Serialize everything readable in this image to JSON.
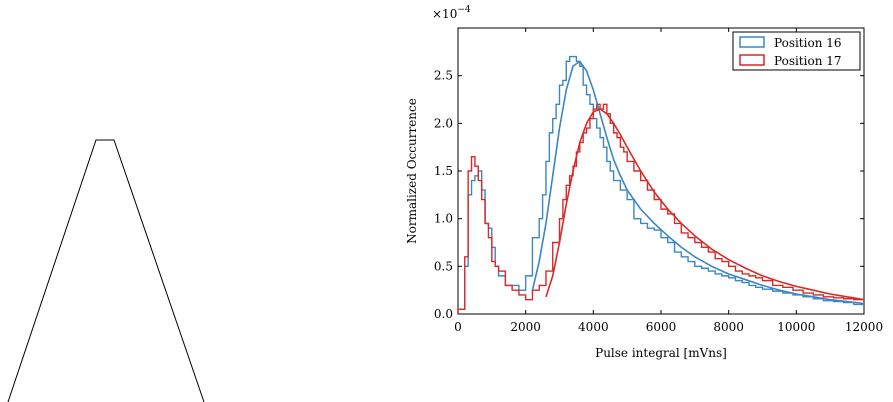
{
  "chart_data": {
    "type": "line",
    "title": "",
    "xlabel": "Pulse integral [mVns]",
    "ylabel": "Normalized Occurrence",
    "y_multiplier": "×10",
    "y_multiplier_exponent": "−4",
    "xlim": [
      0,
      12000
    ],
    "ylim": [
      0,
      3.0
    ],
    "x_ticks": [
      0,
      2000,
      4000,
      6000,
      8000,
      10000,
      12000
    ],
    "x_tick_labels": [
      "0",
      "2000",
      "4000",
      "6000",
      "8000",
      "10000",
      "12000"
    ],
    "y_ticks": [
      0,
      0.5,
      1.0,
      1.5,
      2.0,
      2.5
    ],
    "y_tick_labels": [
      "0.0",
      "0.5",
      "1.0",
      "1.5",
      "2.0",
      "2.5"
    ],
    "y_unit_scale": 0.0001,
    "grid": false,
    "legend_position": "top-right",
    "series": [
      {
        "name": "Position 16",
        "color": "#3b87c3",
        "histogram": {
          "edges": [
            0,
            200,
            300,
            400,
            500,
            600,
            700,
            800,
            900,
            1000,
            1100,
            1200,
            1400,
            1600,
            1800,
            2000,
            2200,
            2400,
            2500,
            2600,
            2700,
            2800,
            2900,
            3000,
            3100,
            3200,
            3300,
            3400,
            3500,
            3600,
            3700,
            3800,
            3900,
            4000,
            4100,
            4200,
            4300,
            4400,
            4500,
            4600,
            4800,
            5000,
            5200,
            5400,
            5600,
            5800,
            6000,
            6200,
            6400,
            6600,
            6800,
            7000,
            7200,
            7400,
            7600,
            7800,
            8000,
            8200,
            8400,
            8600,
            8800,
            9000,
            9300,
            9600,
            9900,
            10200,
            10500,
            10800,
            11100,
            11400,
            11700,
            12000
          ],
          "values": [
            0.05,
            0.5,
            1.25,
            1.4,
            1.45,
            1.5,
            1.3,
            0.95,
            0.9,
            0.7,
            0.5,
            0.4,
            0.3,
            0.3,
            0.25,
            0.4,
            0.8,
            1.0,
            1.25,
            1.6,
            1.9,
            2.05,
            2.2,
            2.4,
            2.45,
            2.65,
            2.7,
            2.7,
            2.65,
            2.6,
            2.4,
            2.3,
            2.2,
            2.05,
            1.95,
            1.85,
            1.75,
            1.6,
            1.5,
            1.4,
            1.3,
            1.2,
            1.0,
            0.95,
            0.9,
            0.88,
            0.8,
            0.75,
            0.65,
            0.6,
            0.55,
            0.5,
            0.48,
            0.45,
            0.42,
            0.4,
            0.38,
            0.35,
            0.33,
            0.3,
            0.28,
            0.26,
            0.24,
            0.22,
            0.2,
            0.18,
            0.16,
            0.14,
            0.13,
            0.12,
            0.1
          ]
        },
        "fit": {
          "x": [
            2200,
            2400,
            2600,
            2800,
            3000,
            3200,
            3400,
            3600,
            3800,
            4000,
            4200,
            4400,
            4600,
            4800,
            5000,
            5400,
            5800,
            6200,
            6600,
            7000,
            7500,
            8000,
            8500,
            9000,
            9500,
            10000,
            10500,
            11000,
            11500,
            12000
          ],
          "y": [
            0.25,
            0.55,
            0.95,
            1.45,
            1.95,
            2.35,
            2.6,
            2.65,
            2.55,
            2.35,
            2.1,
            1.85,
            1.62,
            1.45,
            1.3,
            1.1,
            0.95,
            0.82,
            0.7,
            0.6,
            0.5,
            0.42,
            0.36,
            0.3,
            0.25,
            0.21,
            0.18,
            0.15,
            0.13,
            0.11
          ]
        }
      },
      {
        "name": "Position 17",
        "color": "#d92929",
        "histogram": {
          "edges": [
            0,
            200,
            300,
            400,
            500,
            600,
            700,
            800,
            900,
            1000,
            1100,
            1200,
            1400,
            1600,
            1800,
            2000,
            2200,
            2400,
            2600,
            2800,
            3000,
            3100,
            3200,
            3300,
            3400,
            3500,
            3600,
            3700,
            3800,
            3900,
            4000,
            4100,
            4200,
            4300,
            4400,
            4500,
            4600,
            4700,
            4800,
            4900,
            5000,
            5200,
            5400,
            5600,
            5800,
            6000,
            6200,
            6400,
            6600,
            6800,
            7000,
            7200,
            7400,
            7600,
            7800,
            8000,
            8200,
            8400,
            8600,
            8800,
            9000,
            9300,
            9600,
            9900,
            10200,
            10500,
            10800,
            11100,
            11400,
            11700,
            12000
          ],
          "values": [
            0.05,
            0.6,
            1.5,
            1.65,
            1.55,
            1.4,
            1.2,
            0.95,
            0.8,
            0.55,
            0.5,
            0.45,
            0.3,
            0.25,
            0.2,
            0.15,
            0.25,
            0.3,
            0.45,
            0.75,
            1.0,
            1.2,
            1.35,
            1.45,
            1.55,
            1.7,
            1.8,
            1.9,
            1.95,
            2.05,
            2.15,
            2.2,
            2.15,
            2.2,
            2.1,
            2.0,
            1.9,
            1.85,
            1.75,
            1.7,
            1.6,
            1.5,
            1.4,
            1.3,
            1.2,
            1.1,
            1.05,
            0.95,
            0.85,
            0.8,
            0.75,
            0.7,
            0.65,
            0.58,
            0.55,
            0.5,
            0.45,
            0.42,
            0.4,
            0.38,
            0.35,
            0.3,
            0.28,
            0.25,
            0.22,
            0.2,
            0.18,
            0.17,
            0.16,
            0.15
          ]
        },
        "fit": {
          "x": [
            2600,
            2800,
            3000,
            3200,
            3400,
            3600,
            3800,
            4000,
            4200,
            4400,
            4600,
            4800,
            5000,
            5400,
            5800,
            6200,
            6600,
            7000,
            7500,
            8000,
            8500,
            9000,
            9500,
            10000,
            10500,
            11000,
            11500,
            12000
          ],
          "y": [
            0.18,
            0.4,
            0.75,
            1.15,
            1.5,
            1.8,
            2.0,
            2.12,
            2.15,
            2.1,
            2.0,
            1.88,
            1.75,
            1.5,
            1.28,
            1.1,
            0.95,
            0.82,
            0.68,
            0.57,
            0.48,
            0.4,
            0.34,
            0.29,
            0.25,
            0.21,
            0.18,
            0.15
          ]
        }
      }
    ]
  }
}
